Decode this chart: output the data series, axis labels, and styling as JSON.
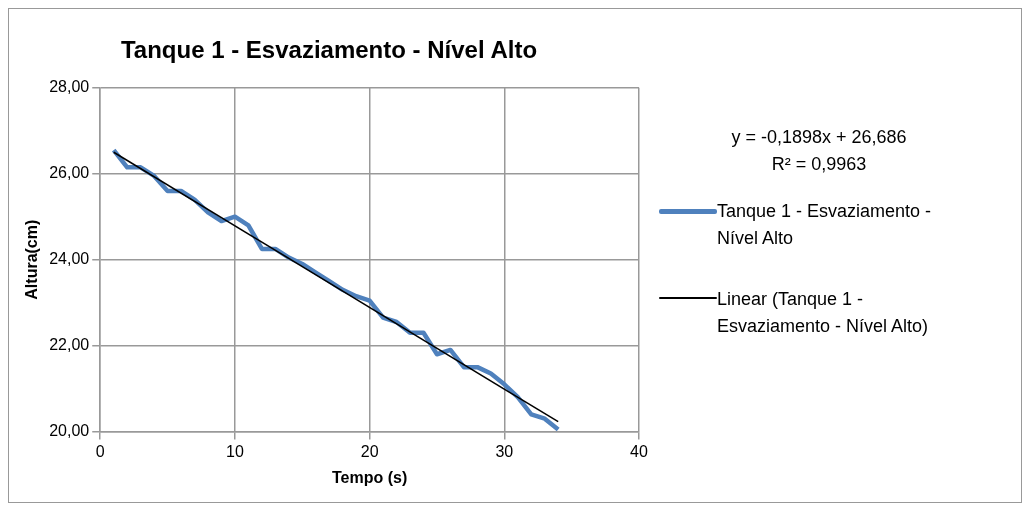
{
  "chart_data": {
    "type": "line",
    "title": "Tanque 1 - Esvaziamento - Nível Alto",
    "xlabel": "Tempo (s)",
    "ylabel": "Altura(cm)",
    "xlim": [
      0,
      40
    ],
    "xticks": [
      0,
      10,
      20,
      30,
      40
    ],
    "ylim": [
      20,
      28
    ],
    "yticks": [
      {
        "value": 20,
        "label": "20,00"
      },
      {
        "value": 22,
        "label": "22,00"
      },
      {
        "value": 24,
        "label": "24,00"
      },
      {
        "value": 26,
        "label": "26,00"
      },
      {
        "value": 28,
        "label": "28,00"
      }
    ],
    "grid": true,
    "legend": "right",
    "marker": "none",
    "annotations": [
      "y = -0,1898x + 26,686",
      "R² = 0,9963"
    ],
    "series": [
      {
        "name": "Tanque 1 - Esvaziamento - Nível Alto",
        "color": "#4f81bd",
        "x": [
          1,
          2,
          3,
          4,
          5,
          6,
          7,
          8,
          9,
          10,
          11,
          12,
          13,
          14,
          15,
          16,
          17,
          18,
          19,
          20,
          21,
          22,
          23,
          24,
          25,
          26,
          27,
          28,
          29,
          30,
          31,
          32,
          33,
          34
        ],
        "values": [
          26.55,
          26.15,
          26.15,
          25.95,
          25.6,
          25.6,
          25.4,
          25.1,
          24.9,
          25.0,
          24.8,
          24.25,
          24.25,
          24.05,
          23.9,
          23.7,
          23.5,
          23.3,
          23.15,
          23.05,
          22.65,
          22.55,
          22.3,
          22.3,
          21.8,
          21.9,
          21.5,
          21.5,
          21.35,
          21.1,
          20.8,
          20.4,
          20.3,
          20.05
        ]
      },
      {
        "name": "Linear (Tanque 1 - Esvaziamento - Nível Alto)",
        "type": "line",
        "color": "#000000",
        "x": [
          1,
          34
        ],
        "values": [
          26.5,
          20.23
        ]
      }
    ]
  }
}
